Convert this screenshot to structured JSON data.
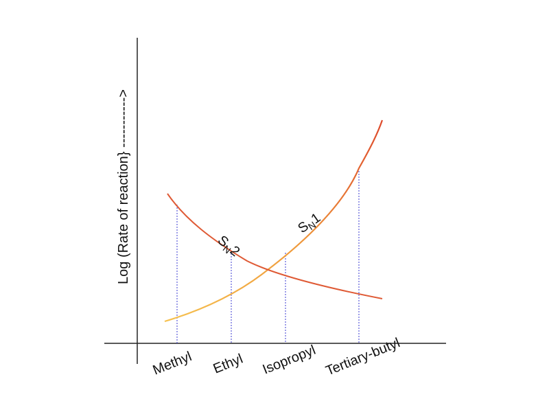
{
  "axis": {
    "y_label": "Log (Rate of reaction} ----------->"
  },
  "categories": [
    "Methyl",
    "Ethyl",
    "Isopropyl",
    "Tertiary-butyl"
  ],
  "curves": [
    {
      "main": "S",
      "subscript": "N",
      "suffix": "2"
    },
    {
      "main": "S",
      "subscript": "N",
      "suffix": "1"
    }
  ]
}
